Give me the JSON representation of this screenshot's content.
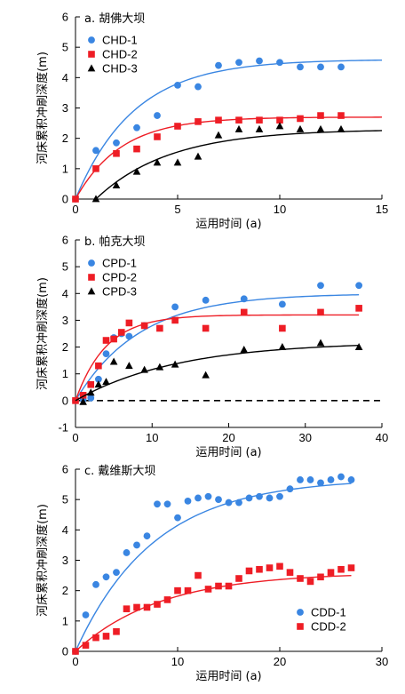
{
  "colors": {
    "blue": "#3a86e2",
    "red": "#ee1d25",
    "black": "#000000"
  },
  "chart_data": [
    {
      "type": "scatter",
      "title": "a. 胡佛大坝",
      "xlabel": "运用时间 (a)",
      "ylabel": "河床累积冲刷深度(m)",
      "xlim": [
        0,
        15
      ],
      "ylim": [
        0,
        6
      ],
      "xticks": [
        0,
        5,
        10,
        15
      ],
      "yticks": [
        0,
        1,
        2,
        3,
        4,
        5,
        6
      ],
      "zero_line": false,
      "legend_position": "top-left",
      "series": [
        {
          "name": "CHD-1",
          "marker": "circle",
          "color": "blue",
          "x": [
            0,
            1,
            2,
            3,
            4,
            5,
            6,
            7,
            8,
            9,
            10,
            11,
            12,
            13
          ],
          "y": [
            0,
            1.6,
            1.85,
            2.35,
            2.75,
            3.75,
            3.7,
            4.4,
            4.5,
            4.55,
            4.5,
            4.35,
            4.35,
            4.35
          ],
          "fit": {
            "a": 4.6,
            "b": 0.35,
            "x0": 0,
            "xmax": 15
          }
        },
        {
          "name": "CHD-2",
          "marker": "square",
          "color": "red",
          "x": [
            0,
            1,
            2,
            3,
            4,
            5,
            6,
            7,
            8,
            9,
            10,
            11,
            12,
            13
          ],
          "y": [
            0,
            1.0,
            1.5,
            1.65,
            2.05,
            2.4,
            2.55,
            2.6,
            2.6,
            2.6,
            2.6,
            2.65,
            2.75,
            2.75
          ],
          "fit": {
            "a": 2.7,
            "b": 0.45,
            "x0": 0,
            "xmax": 15
          }
        },
        {
          "name": "CHD-3",
          "marker": "triangle",
          "color": "black",
          "x": [
            1,
            2,
            3,
            4,
            5,
            6,
            7,
            8,
            9,
            10,
            11,
            12,
            13
          ],
          "y": [
            0,
            0.45,
            0.9,
            1.2,
            1.2,
            1.4,
            2.1,
            2.3,
            2.3,
            2.4,
            2.3,
            2.3,
            2.3
          ],
          "fit": {
            "a": 2.3,
            "b": 0.28,
            "x0": 1,
            "xmax": 15
          }
        }
      ]
    },
    {
      "type": "scatter",
      "title": "b. 帕克大坝",
      "xlabel": "运用时间 (a)",
      "ylabel": "河床累积冲刷深度(m)",
      "xlim": [
        0,
        40
      ],
      "ylim": [
        -1,
        6
      ],
      "xticks": [
        0,
        10,
        20,
        30,
        40
      ],
      "yticks": [
        -1,
        0,
        1,
        2,
        3,
        4,
        5,
        6
      ],
      "zero_line": true,
      "legend_position": "top-left",
      "series": [
        {
          "name": "CPD-1",
          "marker": "circle",
          "color": "blue",
          "x": [
            0,
            1,
            2,
            3,
            4,
            5,
            6,
            7,
            9,
            13,
            17,
            22,
            27,
            32,
            37
          ],
          "y": [
            0,
            0.05,
            0.1,
            0.8,
            1.75,
            2.35,
            2.5,
            2.4,
            2.8,
            3.5,
            3.75,
            3.8,
            3.6,
            4.3,
            4.3
          ],
          "fit": {
            "a": 4.0,
            "b": 0.12,
            "x0": 0,
            "xmax": 37
          }
        },
        {
          "name": "CPD-2",
          "marker": "square",
          "color": "red",
          "x": [
            0,
            1,
            2,
            3,
            4,
            5,
            6,
            7,
            9,
            11,
            13,
            17,
            22,
            27,
            32,
            37
          ],
          "y": [
            0,
            0.2,
            0.6,
            1.3,
            2.25,
            2.3,
            2.55,
            2.9,
            2.8,
            2.7,
            3.0,
            2.7,
            3.3,
            2.7,
            3.3,
            3.45
          ],
          "fit": {
            "a": 3.2,
            "b": 0.25,
            "x0": 0,
            "xmax": 37
          }
        },
        {
          "name": "CPD-3",
          "marker": "triangle",
          "color": "black",
          "x": [
            1,
            2,
            3,
            4,
            5,
            7,
            9,
            11,
            13,
            17,
            22,
            27,
            32,
            37
          ],
          "y": [
            -0.05,
            0.3,
            0.6,
            0.7,
            1.45,
            1.3,
            1.15,
            1.25,
            1.35,
            0.95,
            1.9,
            2.0,
            2.15,
            2.0
          ],
          "fit": {
            "a": 2.2,
            "b": 0.075,
            "x0": 0,
            "xmax": 37
          }
        }
      ]
    },
    {
      "type": "scatter",
      "title": "c. 戴维斯大坝",
      "xlabel": "运用时间 (a)",
      "ylabel": "河床累积冲刷深度(m)",
      "xlim": [
        0,
        30
      ],
      "ylim": [
        0,
        6
      ],
      "xticks": [
        0,
        10,
        20,
        30
      ],
      "yticks": [
        0,
        1,
        2,
        3,
        4,
        5,
        6
      ],
      "zero_line": false,
      "legend_position": "bottom-right",
      "series": [
        {
          "name": "CDD-1",
          "marker": "circle",
          "color": "blue",
          "x": [
            0,
            1,
            2,
            3,
            4,
            5,
            6,
            7,
            8,
            9,
            10,
            11,
            12,
            13,
            14,
            15,
            16,
            17,
            18,
            19,
            20,
            21,
            22,
            23,
            24,
            25,
            26,
            27
          ],
          "y": [
            0,
            1.2,
            2.2,
            2.45,
            2.6,
            3.25,
            3.5,
            3.8,
            4.85,
            4.85,
            4.4,
            4.95,
            5.05,
            5.1,
            5.0,
            4.9,
            4.9,
            5.05,
            5.1,
            5.05,
            5.1,
            5.35,
            5.65,
            5.65,
            5.55,
            5.65,
            5.75,
            5.65
          ],
          "fit": {
            "a": 5.7,
            "b": 0.13,
            "x0": 0,
            "xmax": 27
          }
        },
        {
          "name": "CDD-2",
          "marker": "square",
          "color": "red",
          "x": [
            0,
            1,
            2,
            3,
            4,
            5,
            6,
            7,
            8,
            9,
            10,
            11,
            12,
            13,
            14,
            15,
            16,
            17,
            18,
            19,
            20,
            21,
            22,
            23,
            24,
            25,
            26,
            27
          ],
          "y": [
            0,
            0.2,
            0.45,
            0.5,
            0.65,
            1.4,
            1.45,
            1.45,
            1.55,
            1.7,
            2.0,
            2.0,
            2.5,
            2.05,
            2.15,
            2.15,
            2.4,
            2.65,
            2.7,
            2.75,
            2.8,
            2.6,
            2.4,
            2.3,
            2.45,
            2.6,
            2.7,
            2.75
          ],
          "fit": {
            "a": 2.6,
            "b": 0.12,
            "x0": 0,
            "xmax": 27
          }
        }
      ]
    }
  ]
}
